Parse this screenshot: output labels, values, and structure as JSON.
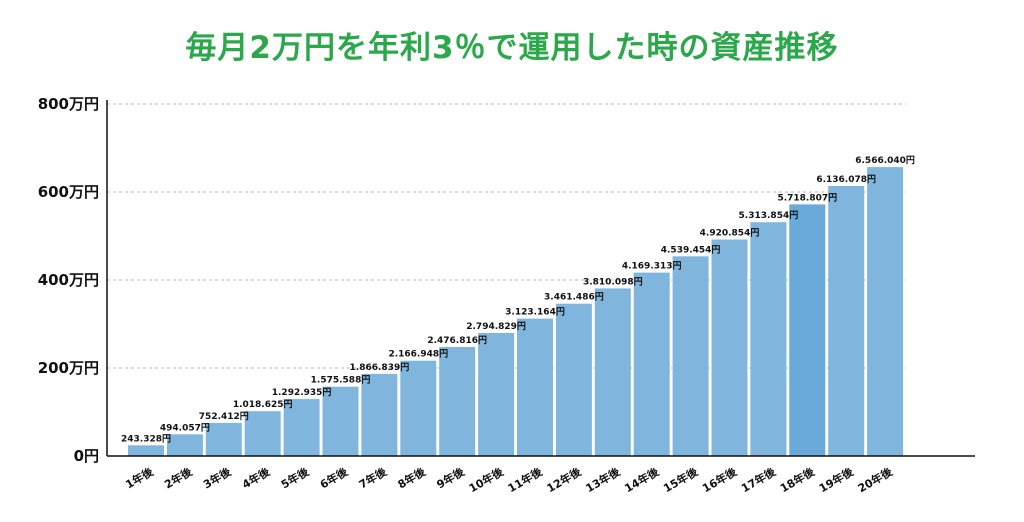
{
  "title": "毎月2万円を年利3％で運用した時の資産推移",
  "colors": {
    "title": "#2ba84a",
    "bar": "#80b6de",
    "bar_highlight": "#6aaadb",
    "axis": "#111111",
    "grid": "#b8b8b8"
  },
  "chart_data": {
    "type": "bar",
    "title": "毎月2万円を年利3％で運用した時の資産推移",
    "xlabel": "",
    "ylabel": "",
    "ylim": [
      0,
      8000000
    ],
    "grid": true,
    "y_ticks": [
      {
        "value": 0,
        "label": "0円"
      },
      {
        "value": 2000000,
        "label": "200万円"
      },
      {
        "value": 4000000,
        "label": "400万円"
      },
      {
        "value": 6000000,
        "label": "600万円"
      },
      {
        "value": 8000000,
        "label": "800万円"
      }
    ],
    "categories": [
      "1年後",
      "2年後",
      "3年後",
      "4年後",
      "5年後",
      "6年後",
      "7年後",
      "8年後",
      "9年後",
      "10年後",
      "11年後",
      "12年後",
      "13年後",
      "14年後",
      "15年後",
      "16年後",
      "17年後",
      "18年後",
      "19年後",
      "20年後"
    ],
    "values": [
      243328,
      494057,
      752412,
      1018625,
      1292935,
      1575588,
      1866839,
      2166948,
      2476816,
      2794829,
      3123164,
      3461486,
      3810098,
      4169313,
      4539454,
      4920854,
      5313854,
      5718807,
      6136078,
      6566040
    ],
    "value_labels": [
      "243.328円",
      "494.057円",
      "752.412円",
      "1.018.625円",
      "1.292.935円",
      "1.575.588円",
      "1.866.839円",
      "2.166.948円",
      "2.476.816円",
      "2.794.829円",
      "3.123.164円",
      "3.461.486円",
      "3.810.098円",
      "4.169.313円",
      "4.539.454円",
      "4.920.854円",
      "5.313.854円",
      "5.718.807円",
      "6.136.078円",
      "6.566.040円"
    ],
    "highlight_index": 17
  }
}
